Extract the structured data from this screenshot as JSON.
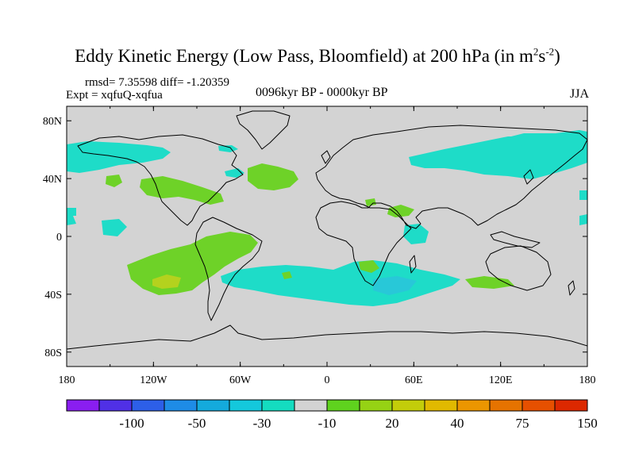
{
  "title": {
    "main": "Eddy Kinetic Energy (Low Pass, Bloomfield) at 200 hPa (in m",
    "sup1": "2",
    "mid": "s",
    "sup2": "-2",
    "end": ")"
  },
  "stats": {
    "rmsd_label": "rmsd=",
    "rmsd_value": "7.35598",
    "diff_label": "diff=",
    "diff_value": "-1.20359",
    "text": "rmsd= 7.35598 diff= -1.20359"
  },
  "experiment": "Expt = xqfuQ-xqfua",
  "period": "0096kyr BP - 0000kyr BP",
  "season": "JJA",
  "map": {
    "background_color": "#d3d3d3",
    "lon_labels": [
      "180",
      "120W",
      "60W",
      "0",
      "60E",
      "120E",
      "180"
    ],
    "lat_labels": [
      "80N",
      "40N",
      "0",
      "40S",
      "80S"
    ]
  },
  "colorbar": {
    "colors": [
      "#8a1ef0",
      "#5030e6",
      "#2d5fe8",
      "#1e8ce6",
      "#14aadc",
      "#14c8dc",
      "#14dcc0",
      "#d3d3d3",
      "#5fd21e",
      "#96d214",
      "#c3cd0a",
      "#e1b900",
      "#eb9600",
      "#e67300",
      "#e65000",
      "#dc2800"
    ],
    "labels": [
      "-100",
      "-50",
      "-30",
      "-10",
      "20",
      "40",
      "75",
      "150"
    ]
  },
  "palette": {
    "cyan": "#1edcc8",
    "cyan_mid": "#28d2d2",
    "green": "#6ed228",
    "yellow_green": "#b4d21e",
    "coast": "#000000"
  }
}
